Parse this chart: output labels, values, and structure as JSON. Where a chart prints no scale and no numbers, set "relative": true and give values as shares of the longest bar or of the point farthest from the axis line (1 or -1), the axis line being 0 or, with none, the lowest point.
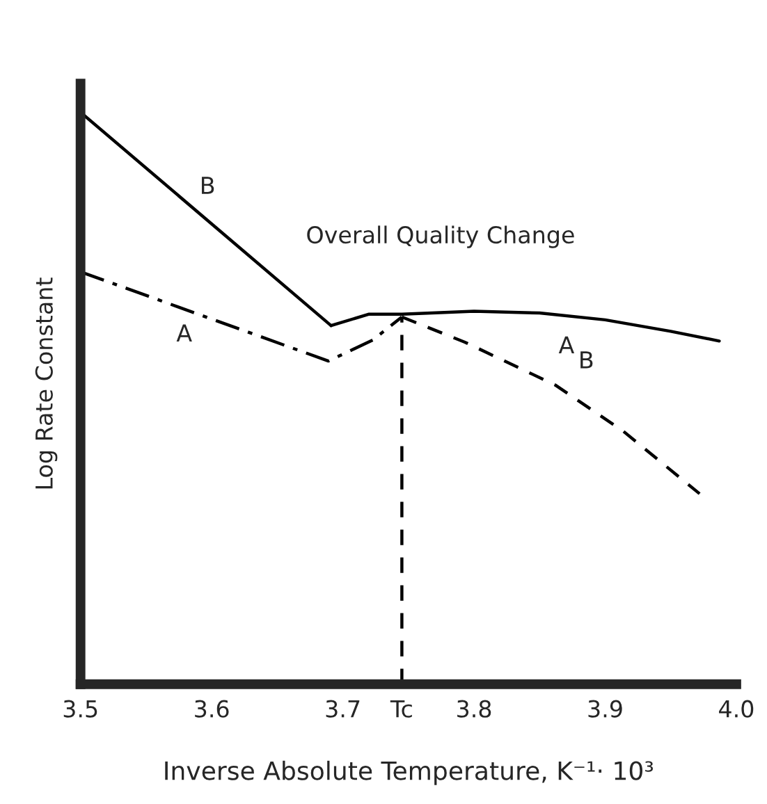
{
  "chart_data": {
    "type": "line",
    "relative": true,
    "ylabel": "Log Rate Constant",
    "xlabel": "Inverse Absolute Temperature, K⁻¹· 10³",
    "xlim": [
      3.5,
      4.0
    ],
    "xticks": [
      3.5,
      3.6,
      3.7,
      {
        "value": 3.745,
        "label": "Tc"
      },
      3.8,
      3.9,
      {
        "value": 4.0,
        "label": "4.0"
      }
    ],
    "grid": false,
    "legend": false,
    "marker": "none",
    "series": [
      {
        "color": "#000000",
        "line_style": "solid",
        "x": [
          3.5,
          3.691
        ],
        "values": [
          1.0,
          0.627
        ]
      },
      {
        "color": "#000000",
        "line_style": "solid",
        "x": [
          3.691,
          3.72,
          3.745,
          3.8,
          3.85,
          3.9,
          3.95,
          3.987
        ],
        "values": [
          0.627,
          0.647,
          0.647,
          0.652,
          0.649,
          0.637,
          0.617,
          0.6
        ]
      },
      {
        "color": "#000000",
        "line_style": "dashdot",
        "x": [
          3.5,
          3.689,
          3.723,
          3.745
        ],
        "values": [
          0.721,
          0.565,
          0.602,
          0.642
        ]
      },
      {
        "color": "#000000",
        "line_style": "dashed",
        "x": [
          3.745,
          3.793,
          3.862,
          3.914,
          3.972
        ],
        "values": [
          0.642,
          0.598,
          0.523,
          0.442,
          0.333
        ]
      },
      {
        "color": "#000000",
        "line_style": "dashed",
        "x": [
          3.745,
          3.745
        ],
        "values": [
          0,
          0.642
        ]
      }
    ],
    "annotations": [
      {
        "text": "B",
        "x": 3.588,
        "y": 0.828
      },
      {
        "text": "A",
        "x": 3.585,
        "y": 0.651
      },
      {
        "text": "Overall Quality Change",
        "x": 3.745,
        "y": 0.647
      },
      {
        "text": "A",
        "x": 3.9,
        "y": 0.637
      },
      {
        "text": "B",
        "x": 3.862,
        "y": 0.523
      }
    ]
  }
}
